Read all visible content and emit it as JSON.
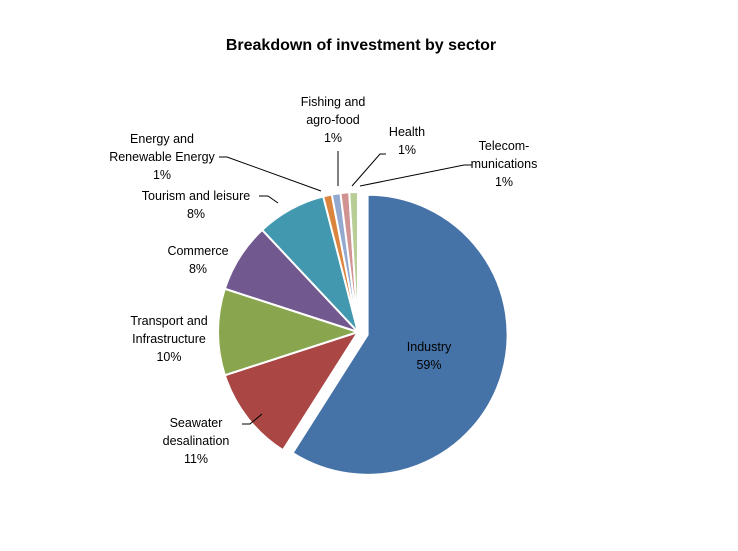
{
  "chart_data": {
    "type": "pie",
    "title": "Breakdown of investment by sector",
    "legend": "none",
    "slices": [
      {
        "label": [
          "Industry"
        ],
        "value_label": "59%",
        "value": 59,
        "color": "#4572A7",
        "exploded": true
      },
      {
        "label": [
          "Seawater",
          "desalination"
        ],
        "value_label": "11%",
        "value": 11,
        "color": "#AA4643"
      },
      {
        "label": [
          "Transport and",
          "Infrastructure"
        ],
        "value_label": "10%",
        "value": 10,
        "color": "#89A54E"
      },
      {
        "label": [
          "Commerce"
        ],
        "value_label": "8%",
        "value": 8,
        "color": "#71588F"
      },
      {
        "label": [
          "Tourism and leisure"
        ],
        "value_label": "8%",
        "value": 8,
        "color": "#4198AF"
      },
      {
        "label": [
          "Energy and",
          "Renewable Energy"
        ],
        "value_label": "1%",
        "value": 1,
        "color": "#DB843D"
      },
      {
        "label": [
          "Fishing and",
          "agro-food"
        ],
        "value_label": "1%",
        "value": 1,
        "color": "#93A9CF"
      },
      {
        "label": [
          "Health"
        ],
        "value_label": "1%",
        "value": 1,
        "color": "#D19392"
      },
      {
        "label": [
          "Telecom-",
          "munications"
        ],
        "value_label": "1%",
        "value": 1,
        "color": "#B9CD96"
      }
    ]
  }
}
